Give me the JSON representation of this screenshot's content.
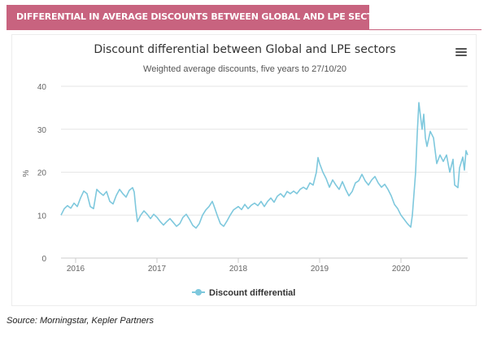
{
  "header": {
    "title": "DIFFERENTIAL IN AVERAGE DISCOUNTS BETWEEN GLOBAL AND LPE SECTORS"
  },
  "source": "Source: Morningstar, Kepler Partners",
  "colors": {
    "header": "#c8637f",
    "series": "#7ec8dd",
    "grid": "#e6e6e6"
  },
  "menu": {
    "icon": "hamburger-menu-icon"
  },
  "chart_data": {
    "type": "line",
    "title": "Discount differential between Global and LPE sectors",
    "subtitle": "Weighted average discounts, five years to 27/10/20",
    "xlabel": "",
    "ylabel": "%",
    "x_range": [
      2015.82,
      2020.82
    ],
    "ylim": [
      0,
      40
    ],
    "y_ticks": [
      0,
      10,
      20,
      30,
      40
    ],
    "x_ticks": [
      {
        "value": 2016,
        "label": "2016"
      },
      {
        "value": 2017,
        "label": "2017"
      },
      {
        "value": 2018,
        "label": "2018"
      },
      {
        "value": 2019,
        "label": "2019"
      },
      {
        "value": 2020,
        "label": "2020"
      }
    ],
    "grid": true,
    "legend": "bottom-center",
    "series": [
      {
        "name": "Discount differential",
        "points": [
          [
            2015.82,
            10.0
          ],
          [
            2015.86,
            11.5
          ],
          [
            2015.9,
            12.2
          ],
          [
            2015.94,
            11.6
          ],
          [
            2015.98,
            12.8
          ],
          [
            2016.02,
            12.0
          ],
          [
            2016.06,
            14.0
          ],
          [
            2016.1,
            15.6
          ],
          [
            2016.14,
            15.0
          ],
          [
            2016.18,
            12.0
          ],
          [
            2016.22,
            11.5
          ],
          [
            2016.26,
            16.0
          ],
          [
            2016.3,
            15.2
          ],
          [
            2016.34,
            14.6
          ],
          [
            2016.38,
            15.5
          ],
          [
            2016.42,
            13.2
          ],
          [
            2016.46,
            12.6
          ],
          [
            2016.5,
            14.6
          ],
          [
            2016.54,
            16.0
          ],
          [
            2016.58,
            15.0
          ],
          [
            2016.62,
            14.2
          ],
          [
            2016.66,
            15.8
          ],
          [
            2016.7,
            16.4
          ],
          [
            2016.72,
            15.4
          ],
          [
            2016.74,
            11.5
          ],
          [
            2016.76,
            8.5
          ],
          [
            2016.8,
            10.0
          ],
          [
            2016.84,
            11.0
          ],
          [
            2016.88,
            10.2
          ],
          [
            2016.92,
            9.2
          ],
          [
            2016.96,
            10.2
          ],
          [
            2017.0,
            9.5
          ],
          [
            2017.04,
            8.5
          ],
          [
            2017.08,
            7.7
          ],
          [
            2017.12,
            8.5
          ],
          [
            2017.16,
            9.2
          ],
          [
            2017.2,
            8.3
          ],
          [
            2017.24,
            7.4
          ],
          [
            2017.28,
            8.0
          ],
          [
            2017.32,
            9.5
          ],
          [
            2017.36,
            10.2
          ],
          [
            2017.4,
            9.0
          ],
          [
            2017.44,
            7.6
          ],
          [
            2017.48,
            7.0
          ],
          [
            2017.52,
            8.0
          ],
          [
            2017.56,
            10.0
          ],
          [
            2017.6,
            11.2
          ],
          [
            2017.64,
            12.0
          ],
          [
            2017.68,
            13.2
          ],
          [
            2017.7,
            12.2
          ],
          [
            2017.74,
            10.0
          ],
          [
            2017.78,
            8.0
          ],
          [
            2017.82,
            7.4
          ],
          [
            2017.86,
            8.6
          ],
          [
            2017.9,
            10.0
          ],
          [
            2017.94,
            11.2
          ],
          [
            2018.0,
            12.0
          ],
          [
            2018.04,
            11.3
          ],
          [
            2018.08,
            12.5
          ],
          [
            2018.12,
            11.5
          ],
          [
            2018.16,
            12.3
          ],
          [
            2018.2,
            12.8
          ],
          [
            2018.24,
            12.2
          ],
          [
            2018.28,
            13.2
          ],
          [
            2018.32,
            12.0
          ],
          [
            2018.36,
            13.2
          ],
          [
            2018.4,
            14.0
          ],
          [
            2018.44,
            13.0
          ],
          [
            2018.48,
            14.4
          ],
          [
            2018.52,
            15.0
          ],
          [
            2018.56,
            14.2
          ],
          [
            2018.6,
            15.5
          ],
          [
            2018.64,
            15.0
          ],
          [
            2018.68,
            15.6
          ],
          [
            2018.72,
            15.0
          ],
          [
            2018.76,
            16.0
          ],
          [
            2018.8,
            16.5
          ],
          [
            2018.84,
            16.0
          ],
          [
            2018.88,
            17.5
          ],
          [
            2018.92,
            17.0
          ],
          [
            2018.96,
            20.0
          ],
          [
            2018.98,
            23.4
          ],
          [
            2019.0,
            22.0
          ],
          [
            2019.04,
            20.0
          ],
          [
            2019.08,
            18.5
          ],
          [
            2019.12,
            16.5
          ],
          [
            2019.16,
            18.2
          ],
          [
            2019.2,
            17.0
          ],
          [
            2019.24,
            16.0
          ],
          [
            2019.28,
            17.8
          ],
          [
            2019.32,
            16.0
          ],
          [
            2019.36,
            14.5
          ],
          [
            2019.4,
            15.5
          ],
          [
            2019.44,
            17.5
          ],
          [
            2019.48,
            18.0
          ],
          [
            2019.52,
            19.5
          ],
          [
            2019.56,
            18.0
          ],
          [
            2019.6,
            17.0
          ],
          [
            2019.64,
            18.2
          ],
          [
            2019.68,
            19.0
          ],
          [
            2019.72,
            17.5
          ],
          [
            2019.76,
            16.5
          ],
          [
            2019.8,
            17.2
          ],
          [
            2019.84,
            16.0
          ],
          [
            2019.88,
            14.5
          ],
          [
            2019.92,
            12.5
          ],
          [
            2019.96,
            11.5
          ],
          [
            2020.0,
            10.0
          ],
          [
            2020.04,
            9.0
          ],
          [
            2020.08,
            8.0
          ],
          [
            2020.12,
            7.2
          ],
          [
            2020.14,
            10.0
          ],
          [
            2020.16,
            15.0
          ],
          [
            2020.18,
            20.0
          ],
          [
            2020.2,
            29.0
          ],
          [
            2020.22,
            36.2
          ],
          [
            2020.24,
            33.0
          ],
          [
            2020.26,
            30.0
          ],
          [
            2020.28,
            33.5
          ],
          [
            2020.3,
            28.0
          ],
          [
            2020.32,
            26.0
          ],
          [
            2020.36,
            29.5
          ],
          [
            2020.4,
            28.0
          ],
          [
            2020.44,
            22.0
          ],
          [
            2020.48,
            24.0
          ],
          [
            2020.52,
            22.5
          ],
          [
            2020.56,
            24.0
          ],
          [
            2020.6,
            20.0
          ],
          [
            2020.64,
            23.0
          ],
          [
            2020.66,
            17.0
          ],
          [
            2020.7,
            16.4
          ],
          [
            2020.72,
            21.0
          ],
          [
            2020.76,
            23.5
          ],
          [
            2020.78,
            20.5
          ],
          [
            2020.8,
            25.0
          ],
          [
            2020.82,
            24.0
          ]
        ]
      }
    ]
  }
}
